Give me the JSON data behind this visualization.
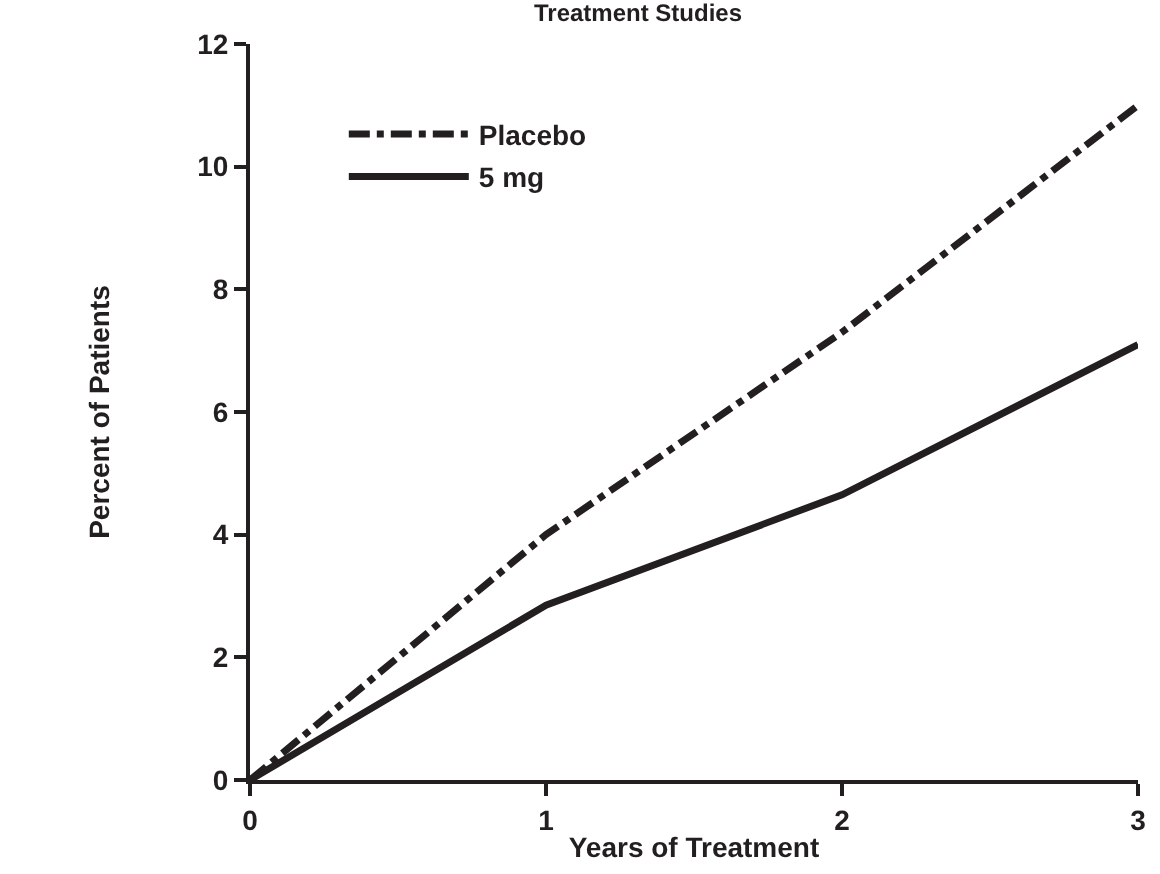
{
  "chart_data": {
    "type": "line",
    "title": "Treatment Studies",
    "xlabel": "Years of Treatment",
    "ylabel": "Percent of Patients",
    "x": [
      0,
      1,
      2,
      3
    ],
    "xlim": [
      0,
      3
    ],
    "xticks": [
      0,
      1,
      2,
      3
    ],
    "ylim": [
      0,
      12
    ],
    "yticks": [
      0,
      2,
      4,
      6,
      8,
      10,
      12
    ],
    "legend": "top left",
    "marker": "none",
    "series": [
      {
        "name": "Placebo",
        "color": "#231f20",
        "values": [
          0,
          4.0,
          7.3,
          11.0
        ],
        "line_style": "dashed"
      },
      {
        "name": "5 mg",
        "color": "#231f20",
        "values": [
          0,
          2.85,
          4.65,
          7.1
        ],
        "line_style": "solid"
      }
    ]
  }
}
